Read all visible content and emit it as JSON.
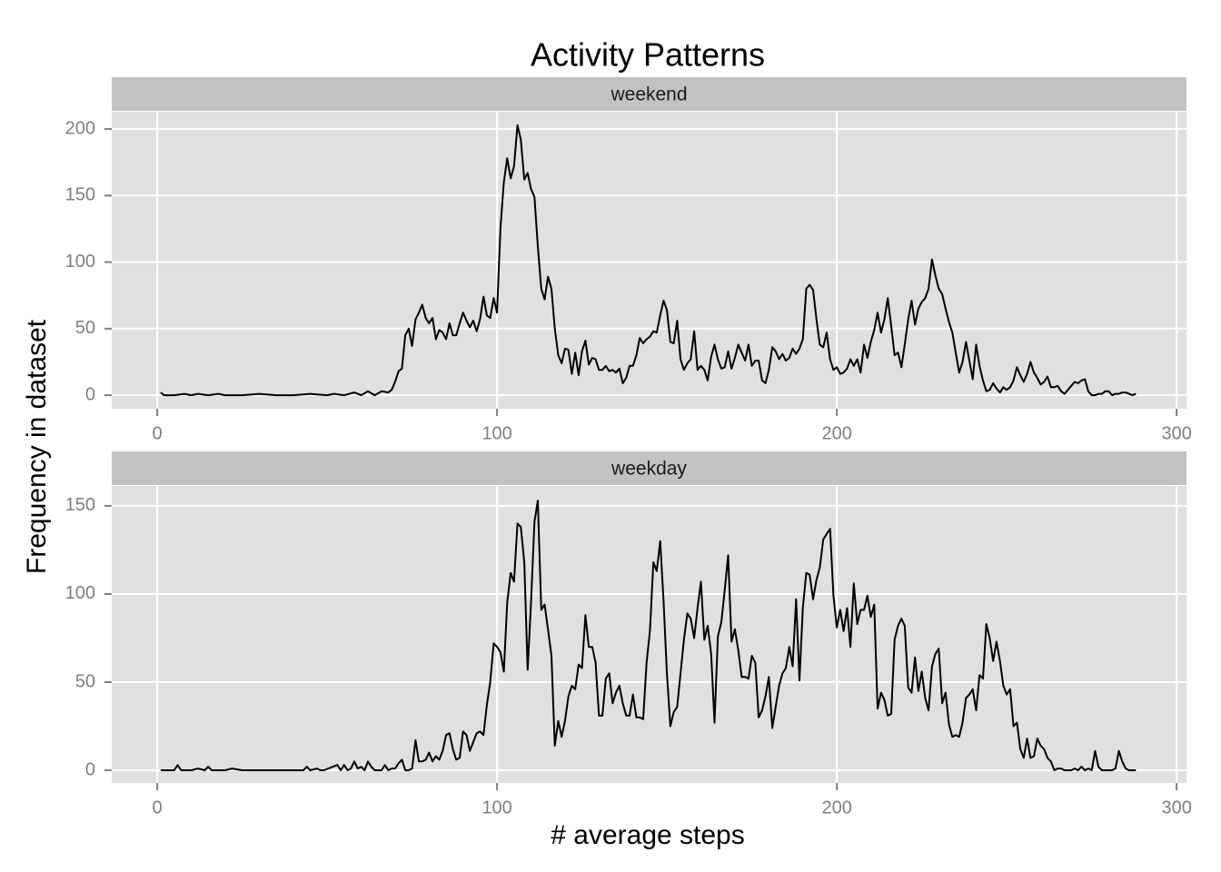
{
  "title": "Activity Patterns",
  "x_label": "# average steps",
  "y_label": "Frequency in dataset",
  "chart_data": [
    {
      "type": "line",
      "strip": "weekend",
      "color": "#000000",
      "grid": true,
      "xlim": [
        -13.4,
        302.9
      ],
      "xticks": [
        0,
        100,
        200,
        300
      ],
      "ylim": [
        -10.2,
        213
      ],
      "yticks": [
        0,
        50,
        100,
        150,
        200
      ],
      "x": [
        1,
        2,
        5,
        8,
        10,
        12,
        15,
        18,
        20,
        25,
        30,
        35,
        40,
        45,
        50,
        52,
        55,
        58,
        60,
        62,
        64,
        66,
        68,
        69,
        70,
        71,
        72,
        73,
        74,
        75,
        76,
        77,
        78,
        79,
        80,
        81,
        82,
        83,
        84,
        85,
        86,
        87,
        88,
        89,
        90,
        91,
        92,
        93,
        94,
        95,
        96,
        97,
        98,
        99,
        100,
        101,
        102,
        103,
        104,
        105,
        106,
        107,
        108,
        109,
        110,
        111,
        112,
        113,
        114,
        115,
        116,
        117,
        118,
        119,
        120,
        121,
        122,
        123,
        124,
        125,
        126,
        127,
        128,
        129,
        130,
        131,
        132,
        133,
        134,
        135,
        136,
        137,
        138,
        139,
        140,
        141,
        142,
        143,
        144,
        145,
        146,
        147,
        148,
        149,
        150,
        151,
        152,
        153,
        154,
        155,
        156,
        157,
        158,
        159,
        160,
        161,
        162,
        163,
        164,
        165,
        166,
        167,
        168,
        169,
        170,
        171,
        172,
        173,
        174,
        175,
        176,
        177,
        178,
        179,
        180,
        181,
        182,
        183,
        184,
        185,
        186,
        187,
        188,
        189,
        190,
        191,
        192,
        193,
        194,
        195,
        196,
        197,
        198,
        199,
        200,
        201,
        202,
        203,
        204,
        205,
        206,
        207,
        208,
        209,
        210,
        211,
        212,
        213,
        214,
        215,
        216,
        217,
        218,
        219,
        220,
        221,
        222,
        223,
        224,
        225,
        226,
        227,
        228,
        229,
        230,
        231,
        232,
        233,
        234,
        235,
        236,
        237,
        238,
        239,
        240,
        241,
        242,
        243,
        244,
        245,
        246,
        247,
        248,
        249,
        250,
        251,
        252,
        253,
        254,
        255,
        256,
        257,
        258,
        259,
        260,
        261,
        262,
        263,
        264,
        265,
        266,
        267,
        268,
        269,
        270,
        271,
        272,
        273,
        274,
        275,
        276,
        277,
        278,
        279,
        280,
        281,
        282,
        283,
        284,
        285,
        286,
        287,
        288
      ],
      "values": [
        2,
        0,
        0,
        1,
        0,
        1,
        0,
        1,
        0,
        0,
        1,
        0,
        0,
        1,
        0,
        1,
        0,
        2,
        0,
        3,
        0,
        3,
        2,
        4,
        10,
        18,
        20,
        45,
        50,
        37,
        57,
        62,
        68,
        58,
        54,
        58,
        42,
        49,
        47,
        42,
        54,
        45,
        45,
        54,
        62,
        56,
        51,
        56,
        48,
        57,
        74,
        60,
        58,
        73,
        62,
        126,
        160,
        178,
        163,
        172,
        203,
        192,
        162,
        167,
        155,
        149,
        112,
        80,
        72,
        89,
        80,
        50,
        30,
        24,
        35,
        34,
        16,
        32,
        15,
        33,
        41,
        23,
        28,
        27,
        19,
        19,
        22,
        18,
        19,
        17,
        20,
        9,
        13,
        22,
        22,
        30,
        43,
        39,
        42,
        44,
        48,
        47,
        60,
        71,
        64,
        40,
        39,
        56,
        27,
        19,
        24,
        27,
        48,
        19,
        22,
        19,
        11,
        29,
        38,
        27,
        20,
        21,
        33,
        20,
        28,
        38,
        32,
        26,
        38,
        22,
        26,
        26,
        11,
        9,
        19,
        36,
        33,
        27,
        31,
        26,
        28,
        35,
        31,
        35,
        42,
        80,
        83,
        79,
        57,
        38,
        36,
        47,
        27,
        19,
        21,
        16,
        17,
        20,
        27,
        22,
        27,
        17,
        38,
        28,
        40,
        49,
        62,
        47,
        57,
        73,
        52,
        30,
        32,
        21,
        38,
        57,
        71,
        53,
        65,
        70,
        73,
        80,
        102,
        90,
        80,
        76,
        65,
        55,
        47,
        32,
        17,
        25,
        40,
        26,
        12,
        38,
        22,
        11,
        3,
        4,
        9,
        5,
        2,
        6,
        4,
        6,
        11,
        21,
        15,
        10,
        16,
        25,
        17,
        13,
        8,
        10,
        14,
        6,
        6,
        7,
        3,
        1,
        4,
        7,
        10,
        9,
        11,
        12,
        3,
        0,
        0,
        1,
        1,
        3,
        3,
        0,
        1,
        1,
        2,
        2,
        1,
        0,
        1
      ]
    },
    {
      "type": "line",
      "strip": "weekday",
      "color": "#000000",
      "grid": true,
      "xlim": [
        -13.4,
        302.9
      ],
      "xticks": [
        0,
        100,
        200,
        300
      ],
      "ylim": [
        -7.2,
        161.3
      ],
      "yticks": [
        0,
        50,
        100,
        150
      ],
      "x": [
        1,
        4,
        5,
        6,
        7,
        10,
        12,
        14,
        15,
        16,
        20,
        22,
        25,
        30,
        35,
        40,
        43,
        44,
        45,
        47,
        48,
        49,
        53,
        54,
        55,
        56,
        57,
        58,
        59,
        60,
        61,
        62,
        63,
        64,
        65,
        66,
        67,
        68,
        69,
        70,
        71,
        72,
        73,
        74,
        75,
        76,
        77,
        78,
        79,
        80,
        81,
        82,
        83,
        84,
        85,
        86,
        87,
        88,
        89,
        90,
        91,
        92,
        93,
        94,
        95,
        96,
        97,
        98,
        99,
        100,
        101,
        102,
        103,
        104,
        105,
        106,
        107,
        108,
        109,
        110,
        111,
        112,
        113,
        114,
        115,
        116,
        117,
        118,
        119,
        120,
        121,
        122,
        123,
        124,
        125,
        126,
        127,
        128,
        129,
        130,
        131,
        132,
        133,
        134,
        135,
        136,
        137,
        138,
        139,
        140,
        141,
        142,
        143,
        144,
        145,
        146,
        147,
        148,
        149,
        150,
        151,
        152,
        153,
        154,
        155,
        156,
        157,
        158,
        159,
        160,
        161,
        162,
        163,
        164,
        165,
        166,
        167,
        168,
        169,
        170,
        171,
        172,
        173,
        174,
        175,
        176,
        177,
        178,
        179,
        180,
        181,
        182,
        183,
        184,
        185,
        186,
        187,
        188,
        189,
        190,
        191,
        192,
        193,
        194,
        195,
        196,
        197,
        198,
        199,
        200,
        201,
        202,
        203,
        204,
        205,
        206,
        207,
        208,
        209,
        210,
        211,
        212,
        213,
        214,
        215,
        216,
        217,
        218,
        219,
        220,
        221,
        222,
        223,
        224,
        225,
        226,
        227,
        228,
        229,
        230,
        231,
        232,
        233,
        234,
        235,
        236,
        237,
        238,
        239,
        240,
        241,
        242,
        243,
        244,
        245,
        246,
        247,
        248,
        249,
        250,
        251,
        252,
        253,
        254,
        255,
        256,
        257,
        258,
        259,
        260,
        261,
        262,
        263,
        264,
        265,
        266,
        267,
        268,
        269,
        270,
        271,
        272,
        273,
        274,
        275,
        276,
        277,
        278,
        279,
        280,
        281,
        282,
        283,
        284,
        285,
        286,
        287,
        288
      ],
      "values": [
        0,
        0,
        0,
        3,
        0,
        0,
        1,
        0,
        2,
        0,
        0,
        1,
        0,
        0,
        0,
        0,
        0,
        2,
        0,
        1,
        0,
        0,
        3,
        0,
        3,
        0,
        1,
        5,
        1,
        2,
        0,
        5,
        2,
        0,
        0,
        0,
        3,
        0,
        1,
        1,
        4,
        6,
        0,
        0,
        1,
        17,
        5,
        5,
        6,
        10,
        5,
        8,
        6,
        11,
        20,
        21,
        12,
        6,
        7,
        22,
        20,
        11,
        16,
        21,
        22,
        20,
        37,
        50,
        72,
        70,
        67,
        56,
        95,
        112,
        107,
        140,
        138,
        118,
        57,
        95,
        141,
        153,
        91,
        94,
        80,
        65,
        14,
        28,
        19,
        28,
        42,
        48,
        46,
        60,
        58,
        88,
        70,
        70,
        61,
        31,
        31,
        52,
        55,
        38,
        44,
        48,
        38,
        31,
        31,
        43,
        30,
        30,
        29,
        61,
        79,
        118,
        113,
        130,
        96,
        55,
        25,
        33,
        36,
        55,
        74,
        89,
        86,
        75,
        92,
        107,
        74,
        82,
        66,
        27,
        76,
        84,
        102,
        122,
        73,
        80,
        68,
        53,
        53,
        52,
        65,
        61,
        30,
        34,
        42,
        53,
        24,
        36,
        48,
        55,
        58,
        70,
        59,
        97,
        51,
        92,
        112,
        111,
        97,
        108,
        115,
        131,
        134,
        137,
        99,
        81,
        91,
        79,
        92,
        70,
        106,
        83,
        91,
        91,
        99,
        87,
        94,
        35,
        44,
        40,
        31,
        32,
        74,
        82,
        86,
        82,
        47,
        44,
        64,
        45,
        56,
        41,
        34,
        59,
        66,
        69,
        38,
        44,
        26,
        19,
        20,
        19,
        27,
        41,
        43,
        46,
        34,
        54,
        52,
        83,
        75,
        62,
        73,
        62,
        48,
        43,
        46,
        25,
        27,
        12,
        7,
        18,
        7,
        8,
        18,
        14,
        12,
        7,
        5,
        0,
        1,
        1,
        0,
        0,
        0,
        1,
        0,
        2,
        0,
        1,
        0,
        11,
        2,
        0,
        0,
        0,
        0,
        1,
        11,
        5,
        1,
        0,
        0,
        0
      ]
    }
  ]
}
